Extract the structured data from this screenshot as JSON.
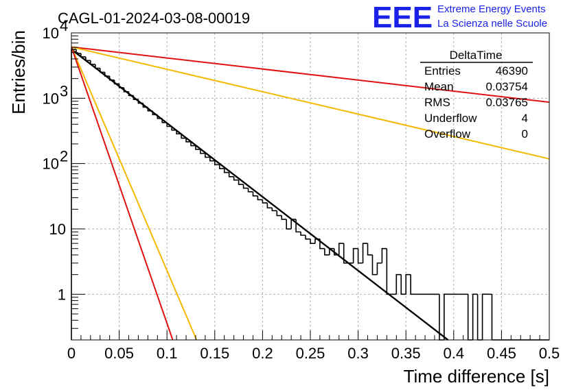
{
  "chart_data": {
    "type": "histogram",
    "title": "CAGL-01-2024-03-08-00019",
    "xlabel": "Time difference [s]",
    "ylabel": "Entries/bin",
    "xlim": [
      0,
      0.5
    ],
    "ylim": [
      0.2,
      10000
    ],
    "y_scale": "log",
    "grid": true,
    "x_ticks": [
      {
        "value": 0,
        "label": "0"
      },
      {
        "value": 0.05,
        "label": "0.05"
      },
      {
        "value": 0.1,
        "label": "0.1"
      },
      {
        "value": 0.15,
        "label": "0.15"
      },
      {
        "value": 0.2,
        "label": "0.2"
      },
      {
        "value": 0.25,
        "label": "0.25"
      },
      {
        "value": 0.3,
        "label": "0.3"
      },
      {
        "value": 0.35,
        "label": "0.35"
      },
      {
        "value": 0.4,
        "label": "0.4"
      },
      {
        "value": 0.45,
        "label": "0.45"
      },
      {
        "value": 0.5,
        "label": "0.5"
      }
    ],
    "y_ticks": [
      {
        "value": 1,
        "base": "1",
        "exp": ""
      },
      {
        "value": 10,
        "base": "10",
        "exp": ""
      },
      {
        "value": 100,
        "base": "10",
        "exp": "2"
      },
      {
        "value": 1000,
        "base": "10",
        "exp": "3"
      },
      {
        "value": 10000,
        "base": "10",
        "exp": "4"
      }
    ],
    "histogram": {
      "bin_width": 0.005,
      "bin_start": 0,
      "counts": [
        5600,
        4850,
        4300,
        3780,
        3300,
        2880,
        2500,
        2180,
        1900,
        1660,
        1450,
        1260,
        1100,
        960,
        840,
        730,
        640,
        560,
        490,
        425,
        370,
        325,
        285,
        245,
        215,
        188,
        165,
        143,
        125,
        110,
        96,
        84,
        73,
        63,
        56,
        48,
        42,
        37,
        32,
        28,
        25,
        21,
        19,
        16,
        14,
        10,
        14,
        9,
        8,
        7,
        6,
        7,
        5,
        4,
        5,
        4,
        6,
        3,
        3,
        5,
        3,
        6,
        4,
        2,
        3,
        5,
        1,
        1,
        2,
        1,
        2,
        1,
        1,
        1,
        1,
        1,
        1,
        0,
        1,
        1,
        1,
        1,
        1,
        0,
        1,
        0,
        1,
        1,
        0,
        0,
        0,
        0,
        0,
        0,
        0,
        0,
        0,
        0,
        0,
        0,
        0,
        0
      ],
      "color": "#000000"
    },
    "fit_lines": [
      {
        "name": "",
        "color": "#000000",
        "x": [
          0,
          0.394
        ],
        "y": [
          5600,
          0.2
        ]
      },
      {
        "name": "",
        "color": "#e01010",
        "x": [
          0,
          0.5
        ],
        "y": [
          6100,
          870
        ]
      },
      {
        "name": "",
        "color": "#f5b800",
        "x": [
          0,
          0.5
        ],
        "y": [
          6100,
          118
        ]
      },
      {
        "name": "",
        "color": "#f5b800",
        "x": [
          0,
          0.131
        ],
        "y": [
          6100,
          0.2
        ]
      },
      {
        "name": "",
        "color": "#e01010",
        "x": [
          0,
          0.106
        ],
        "y": [
          6100,
          0.2
        ]
      }
    ],
    "stats_box": {
      "title": "DeltaTime",
      "rows": [
        {
          "label": "Entries",
          "value": "46390"
        },
        {
          "label": "Mean",
          "value": "0.03754"
        },
        {
          "label": "RMS",
          "value": "0.03765"
        },
        {
          "label": "Underflow",
          "value": "4"
        },
        {
          "label": "Overflow",
          "value": "0"
        }
      ]
    }
  },
  "brand": {
    "logo": "EEE",
    "line1": "Extreme Energy Events",
    "line2": "La Scienza nelle Scuole",
    "color": "#1a22e8"
  }
}
